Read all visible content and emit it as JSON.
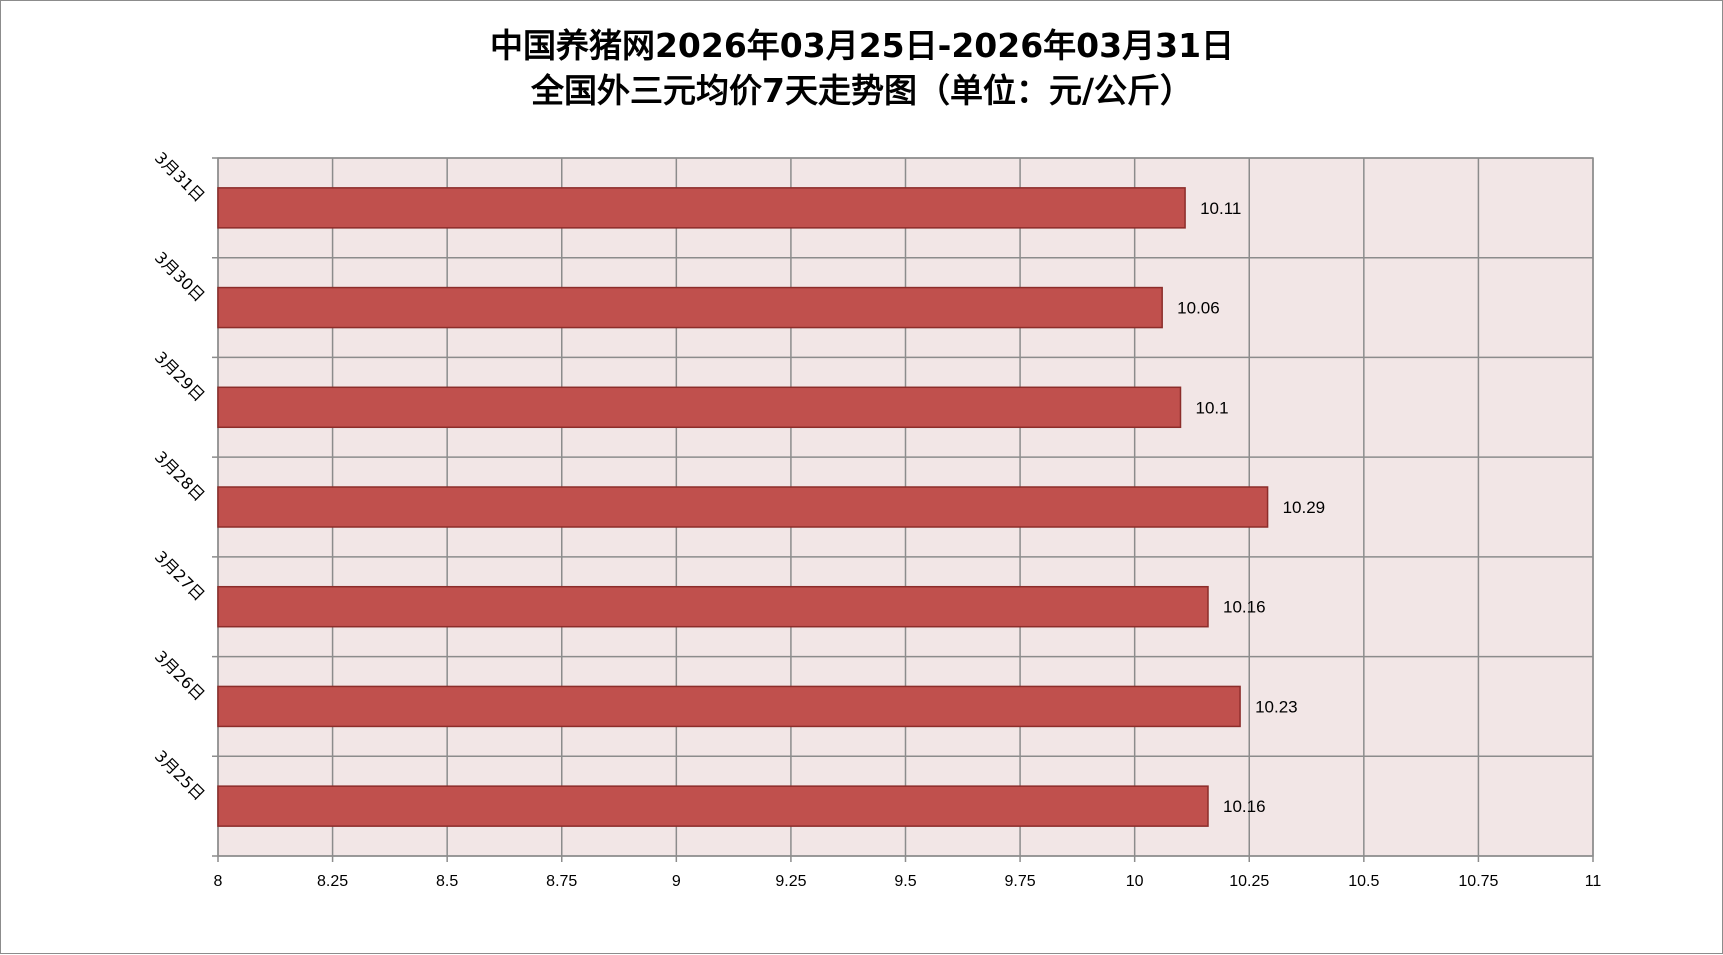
{
  "colors": {
    "bar_fill": "#c0504d",
    "bar_stroke": "#8c2d2a",
    "plot_background": "#f2e6e6",
    "grid": "#8c8c8c"
  },
  "chart_data": {
    "type": "bar",
    "orientation": "horizontal",
    "title": [
      "中国养猪网2026年03月25日-2026年03月31日",
      "全国外三元均价7天走势图（单位：元/公斤）"
    ],
    "categories": [
      "3月31日",
      "3月30日",
      "3月29日",
      "3月28日",
      "3月27日",
      "3月26日",
      "3月25日"
    ],
    "values": [
      10.11,
      10.06,
      10.1,
      10.29,
      10.16,
      10.23,
      10.16
    ],
    "value_labels": [
      "10.11",
      "10.06",
      "10.1",
      "10.29",
      "10.16",
      "10.23",
      "10.16"
    ],
    "xlim": [
      8,
      11
    ],
    "x_ticks": [
      "8",
      "8.25",
      "8.5",
      "8.75",
      "9",
      "9.25",
      "9.5",
      "9.75",
      "10",
      "10.25",
      "10.5",
      "10.75",
      "11"
    ],
    "grid": true,
    "legend": "none"
  }
}
